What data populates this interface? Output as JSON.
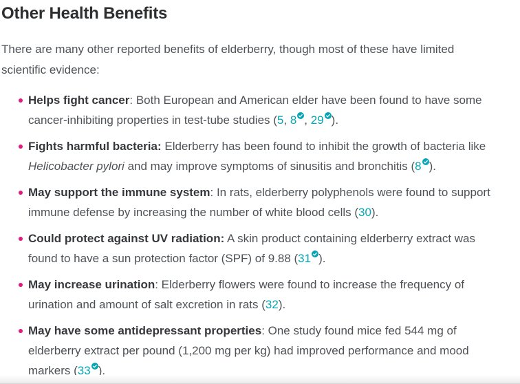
{
  "page": {
    "heading": "Other Health Benefits",
    "intro": "There are many other reported benefits of elderberry, though most of these have limited scientific evidence:"
  },
  "colors": {
    "accent_teal": "#06a5b4",
    "bullet_pink": "#e3197d",
    "heading_color": "#2c2e30",
    "body_color": "#4e5256"
  },
  "icons": {
    "trusted_source_badge": "checkmark-seal-icon"
  },
  "list": {
    "items": [
      {
        "segments": [
          {
            "type": "bold",
            "text": "Helps fight cancer"
          },
          {
            "type": "text",
            "text": ": Both European and American elder have been found to have some cancer-inhibiting properties in test-tube studies ("
          },
          {
            "type": "cite",
            "text": "5",
            "badge": false
          },
          {
            "type": "text",
            "text": ", "
          },
          {
            "type": "cite",
            "text": "8",
            "badge": true
          },
          {
            "type": "text",
            "text": ", "
          },
          {
            "type": "cite",
            "text": "29",
            "badge": true
          },
          {
            "type": "text",
            "text": ")."
          }
        ]
      },
      {
        "segments": [
          {
            "type": "bold",
            "text": "Fights harmful bacteria:"
          },
          {
            "type": "text",
            "text": " Elderberry has been found to inhibit the growth of bacteria like "
          },
          {
            "type": "italic",
            "text": "Helicobacter pylori"
          },
          {
            "type": "text",
            "text": " and may improve symptoms of sinusitis and bronchitis ("
          },
          {
            "type": "cite",
            "text": "8",
            "badge": true
          },
          {
            "type": "text",
            "text": ")."
          }
        ]
      },
      {
        "segments": [
          {
            "type": "bold",
            "text": "May support the immune system"
          },
          {
            "type": "text",
            "text": ": In rats, elderberry polyphenols were found to support immune defense by increasing the number of white blood cells ("
          },
          {
            "type": "cite",
            "text": "30",
            "badge": false
          },
          {
            "type": "text",
            "text": ")."
          }
        ]
      },
      {
        "segments": [
          {
            "type": "bold",
            "text": "Could protect against UV radiation:"
          },
          {
            "type": "text",
            "text": " A skin product containing elderberry extract was found to have a sun protection factor (SPF) of 9.88 ("
          },
          {
            "type": "cite",
            "text": "31",
            "badge": true
          },
          {
            "type": "text",
            "text": ")."
          }
        ]
      },
      {
        "segments": [
          {
            "type": "bold",
            "text": "May increase urination"
          },
          {
            "type": "text",
            "text": ": Elderberry flowers were found to increase the frequency of urination and amount of salt excretion in rats ("
          },
          {
            "type": "cite",
            "text": "32",
            "badge": false
          },
          {
            "type": "text",
            "text": ")."
          }
        ]
      },
      {
        "segments": [
          {
            "type": "bold",
            "text": "May have some antidepressant properties"
          },
          {
            "type": "text",
            "text": ": One study found mice fed 544 mg of elderberry extract per pound (1,200 mg per kg) had improved performance and mood markers ("
          },
          {
            "type": "cite",
            "text": "33",
            "badge": true
          },
          {
            "type": "text",
            "text": ")."
          }
        ]
      }
    ]
  }
}
